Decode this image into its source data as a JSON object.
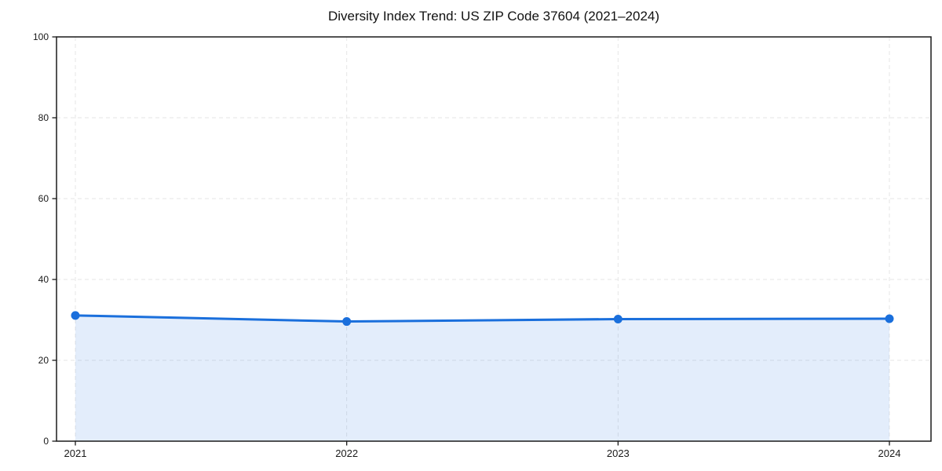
{
  "chart_data": {
    "type": "line",
    "title": "Diversity Index Trend: US ZIP Code 37604 (2021–2024)",
    "categories": [
      "2021",
      "2022",
      "2023",
      "2024"
    ],
    "x": [
      2021,
      2022,
      2023,
      2024
    ],
    "series": [
      {
        "name": "Diversity Index",
        "values": [
          31.1,
          29.6,
          30.2,
          30.3
        ]
      }
    ],
    "xlabel": "",
    "ylabel": "",
    "ylim": [
      0,
      100
    ],
    "yticks": [
      0,
      20,
      40,
      60,
      80,
      100
    ],
    "grid": true,
    "grid_style": "dashed",
    "legend": "none",
    "colors": {
      "line": "#1a6fdc",
      "marker": "#1a6fdc",
      "area_fill": "#1a6fdc",
      "grid": "#e6e6e6",
      "spine": "#1a1a1a",
      "title_text": "#111111",
      "tick_text": "#1a1a1a",
      "background": "#ffffff"
    },
    "area_opacity": 0.12,
    "marker_shape": "circle"
  }
}
